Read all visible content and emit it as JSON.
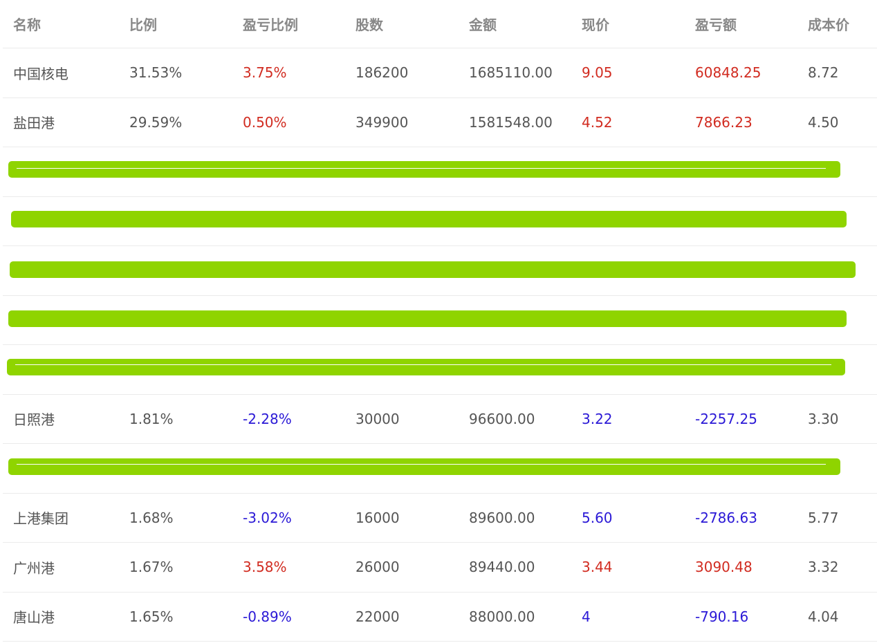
{
  "table": {
    "columns": [
      "名称",
      "比例",
      "盈亏比例",
      "股数",
      "金额",
      "现价",
      "盈亏额",
      "成本价"
    ],
    "rows": [
      {
        "name": "中国核电",
        "ratio": "31.53%",
        "pnl_ratio": "3.75%",
        "shares": "186200",
        "amount": "1685110.00",
        "price": "9.05",
        "pnl": "60848.25",
        "cost": "8.72",
        "direction": "up"
      },
      {
        "name": "盐田港",
        "ratio": "29.59%",
        "pnl_ratio": "0.50%",
        "shares": "349900",
        "amount": "1581548.00",
        "price": "4.52",
        "pnl": "7866.23",
        "cost": "4.50",
        "direction": "up"
      },
      {
        "redacted": true
      },
      {
        "redacted": true
      },
      {
        "redacted": true
      },
      {
        "redacted": true
      },
      {
        "redacted": true
      },
      {
        "name": "日照港",
        "ratio": "1.81%",
        "pnl_ratio": "-2.28%",
        "shares": "30000",
        "amount": "96600.00",
        "price": "3.22",
        "pnl": "-2257.25",
        "cost": "3.30",
        "direction": "down"
      },
      {
        "redacted": true
      },
      {
        "name": "上港集团",
        "ratio": "1.68%",
        "pnl_ratio": "-3.02%",
        "shares": "16000",
        "amount": "89600.00",
        "price": "5.60",
        "pnl": "-2786.63",
        "cost": "5.77",
        "direction": "down"
      },
      {
        "name": "广州港",
        "ratio": "1.67%",
        "pnl_ratio": "3.58%",
        "shares": "26000",
        "amount": "89440.00",
        "price": "3.44",
        "pnl": "3090.48",
        "cost": "3.32",
        "direction": "up"
      },
      {
        "name": "唐山港",
        "ratio": "1.65%",
        "pnl_ratio": "-0.89%",
        "shares": "22000",
        "amount": "88000.00",
        "price": "4",
        "pnl": "-790.16",
        "cost": "4.04",
        "direction": "down"
      }
    ]
  },
  "colors": {
    "up": "#d12b20",
    "down": "#2a18d6",
    "text": "#555555",
    "header_text": "#888888",
    "redaction": "#8fd400",
    "divider": "#ebebeb"
  }
}
